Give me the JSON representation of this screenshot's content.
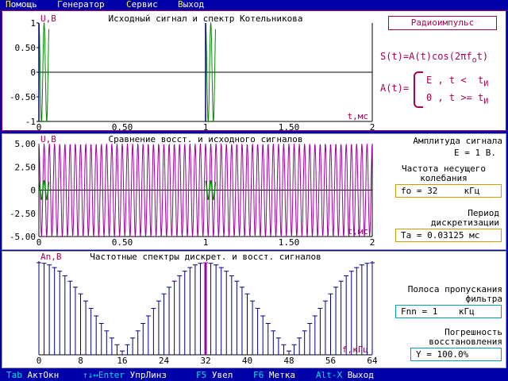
{
  "menu": {
    "items": [
      {
        "hot": "П",
        "rest": "омощь"
      },
      {
        "hot": "Г",
        "rest": "енератор"
      },
      {
        "hot": "С",
        "rest": "ервис"
      },
      {
        "hot": "В",
        "rest": "ыход"
      }
    ]
  },
  "top_panel": {
    "title": "Исходный сигнал и спектр Котельникова",
    "ylabel": "U,В",
    "xlabel": "t,мс",
    "yticks": [
      "1",
      "0.50",
      "0",
      "-0.50",
      "-1"
    ],
    "xticks": [
      "0",
      "0.50",
      "1",
      "1.50",
      "2"
    ],
    "button_label": "Радиоимпульс",
    "formula_s": "S(t)=A(t)cos(2πf",
    "formula_s_sub": "o",
    "formula_s_end": "t)",
    "formula_a": "A(t)=",
    "case1": "E , t <  t",
    "case2": "0 , t >= t",
    "case_sub": "И"
  },
  "mid_panel": {
    "title": "Сравнение восст. и исходного сигналов",
    "ylabel": "U,В",
    "xlabel": "t,мс",
    "yticks": [
      "5.00",
      "2.50",
      "0",
      "-2.50",
      "-5.00"
    ],
    "xticks": [
      "0",
      "0.50",
      "1",
      "1.50",
      "2"
    ],
    "amp_title": "Амплитуда сигнала",
    "amp_value": "Е = 1 В.",
    "carrier_title_1": "Частота несущего",
    "carrier_title_2": "колебания",
    "carrier_value": "fo = 32     кГц",
    "period_title_1": "Период",
    "period_title_2": "дискретизации",
    "period_value": "Та = 0.03125 мс"
  },
  "bot_panel": {
    "title": "Частотные спектры дискрет. и восст. сигналов",
    "ylabel": "An,В",
    "xlabel": "f,кГц",
    "xticks": [
      "0",
      "8",
      "16",
      "24",
      "32",
      "40",
      "48",
      "56",
      "64"
    ],
    "band_title_1": "Полоса пропускания",
    "band_title_2": "фильтра",
    "band_value": "Fnn = 1    кГц",
    "err_title_1": "Погрешность",
    "err_title_2": "восстановления",
    "err_value": "Y = 100.0%"
  },
  "status": [
    {
      "key": "Tab",
      "label": "АктОкн"
    },
    {
      "key": "↑↓↔Enter",
      "label": "УпрЛинз"
    },
    {
      "key": "F5",
      "label": "Увел"
    },
    {
      "key": "F6",
      "label": "Метка"
    },
    {
      "key": "Alt-X",
      "label": "Выход"
    }
  ],
  "colors": {
    "bg": "#0000a8",
    "panel": "#ffffff",
    "title_dark": "#000000",
    "accent": "#a80054",
    "green": "#008a00",
    "purple": "#a000a0",
    "navy": "#000080",
    "hot": "#fff600",
    "cyan": "#00e0e0"
  },
  "chart_data": [
    {
      "type": "line",
      "title": "Исходный сигнал и спектр Котельникова",
      "xlabel": "t,мс",
      "ylabel": "U,В",
      "xlim": [
        0,
        2
      ],
      "ylim": [
        -1,
        1
      ],
      "series": [
        {
          "description_free": true,
          "pulses_start_ms": [
            0,
            1
          ],
          "pulse_width_ms": 0.06,
          "carrier_khz": 32,
          "amplitude": 1
        }
      ]
    },
    {
      "type": "line",
      "title": "Сравнение восст. и исходного сигналов",
      "xlabel": "t,мс",
      "ylabel": "U,В",
      "xlim": [
        0,
        2
      ],
      "ylim": [
        -5,
        5
      ],
      "series": [
        {
          "amplitude": 5,
          "carrier_khz": 32
        },
        {
          "amplitude": 1,
          "pulses_start_ms": [
            0,
            1
          ]
        }
      ]
    },
    {
      "type": "bar",
      "title": "Частотные спектры дискрет. и восст. сигналов",
      "xlabel": "f,кГц",
      "ylabel": "An,В",
      "xlim": [
        0,
        64
      ],
      "harmonic_step_khz": 1
    }
  ]
}
